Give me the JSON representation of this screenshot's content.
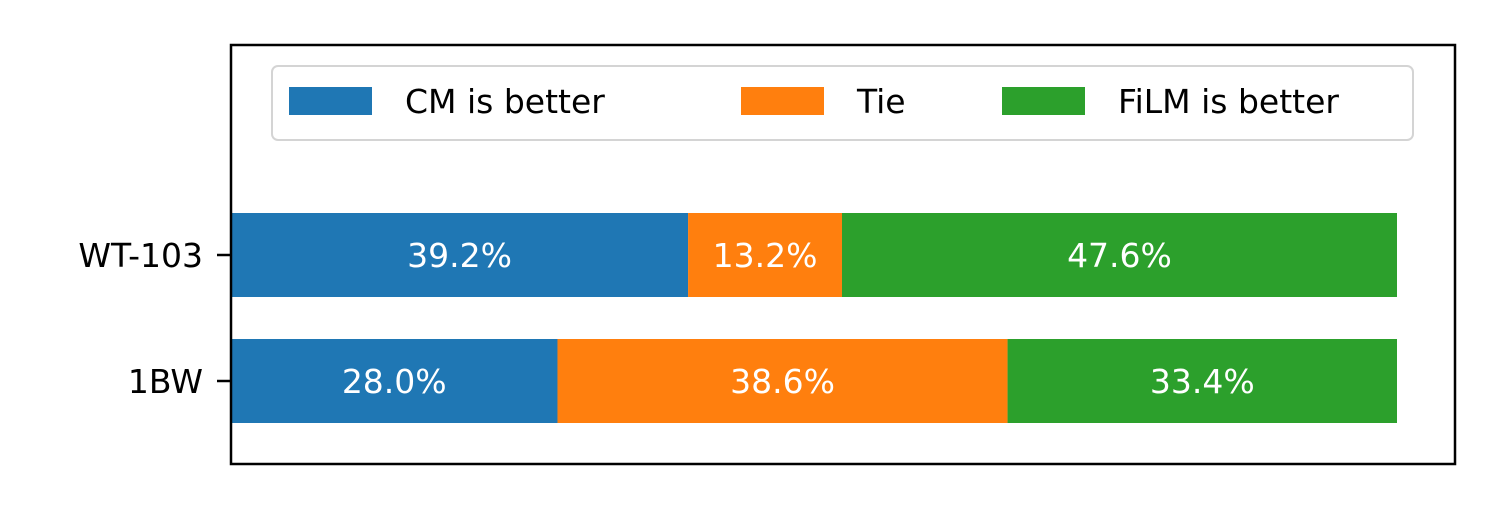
{
  "chart_data": {
    "type": "bar",
    "orientation": "horizontal",
    "stacked": true,
    "title": "",
    "xlabel": "",
    "ylabel": "",
    "categories": [
      "WT-103",
      "1BW"
    ],
    "series": [
      {
        "name": "CM is better",
        "color": "#1f77b4",
        "values": [
          39.2,
          28.0
        ],
        "labels": [
          "39.2%",
          "28.0%"
        ]
      },
      {
        "name": "Tie",
        "color": "#ff7f0e",
        "values": [
          13.2,
          38.6
        ],
        "labels": [
          "13.2%",
          "38.6%"
        ]
      },
      {
        "name": "FiLM is better",
        "color": "#2ca02c",
        "values": [
          47.6,
          33.4
        ],
        "labels": [
          "47.6%",
          "33.4%"
        ]
      }
    ],
    "xlim": [
      0,
      100
    ],
    "x_axis_visible": false,
    "grid": false,
    "legend": {
      "placement": "top",
      "columns": 3
    },
    "data_label_color": "#ffffff"
  }
}
